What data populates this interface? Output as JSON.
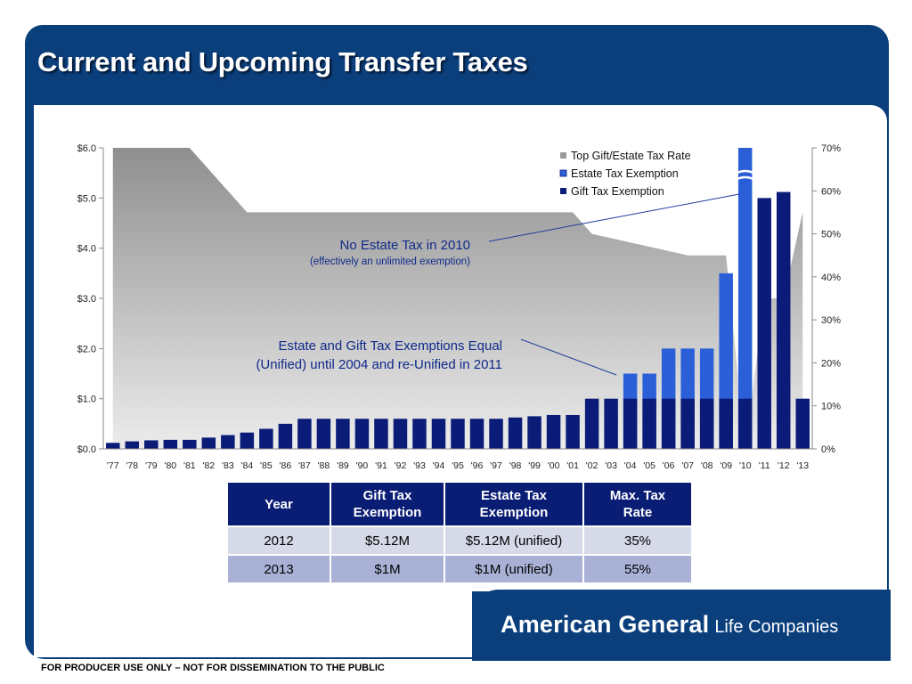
{
  "slide": {
    "title": "Current and Upcoming Transfer Taxes",
    "brand_bold": "American General",
    "brand_light": "Life Companies",
    "disclaimer": "FOR PRODUCER USE ONLY – NOT FOR DISSEMINATION TO THE PUBLIC"
  },
  "chart_data": {
    "type": "bar",
    "categories": [
      "'77",
      "'78",
      "'79",
      "'80",
      "'81",
      "'82",
      "'83",
      "'84",
      "'85",
      "'86",
      "'87",
      "'88",
      "'89",
      "'90",
      "'91",
      "'92",
      "'93",
      "'94",
      "'95",
      "'96",
      "'97",
      "'98",
      "'99",
      "'00",
      "'01",
      "'02",
      "'03",
      "'04",
      "'05",
      "'06",
      "'07",
      "'08",
      "'09",
      "'10",
      "'11",
      "'12",
      "'13"
    ],
    "series": [
      {
        "name": "Top Gift/Estate Tax Rate",
        "type": "area",
        "axis": "right",
        "color": "#9a9a9a",
        "values": [
          70,
          70,
          70,
          70,
          70,
          65,
          60,
          55,
          55,
          55,
          55,
          55,
          55,
          55,
          55,
          55,
          55,
          55,
          55,
          55,
          55,
          55,
          55,
          55,
          55,
          50,
          49,
          48,
          47,
          46,
          45,
          45,
          45,
          null,
          35,
          35,
          55
        ]
      },
      {
        "name": "Estate Tax Exemption",
        "type": "bar",
        "axis": "left",
        "color": "#2a5fd8",
        "values": [
          null,
          null,
          null,
          null,
          null,
          null,
          null,
          null,
          null,
          null,
          null,
          null,
          null,
          null,
          null,
          null,
          null,
          null,
          null,
          null,
          null,
          null,
          null,
          null,
          null,
          null,
          null,
          1.5,
          1.5,
          2.0,
          2.0,
          2.0,
          3.5,
          6.0,
          null,
          null,
          null
        ]
      },
      {
        "name": "Gift Tax Exemption",
        "type": "bar",
        "axis": "left",
        "color": "#0a1c78",
        "values": [
          0.12,
          0.15,
          0.17,
          0.18,
          0.18,
          0.225,
          0.275,
          0.325,
          0.4,
          0.5,
          0.6,
          0.6,
          0.6,
          0.6,
          0.6,
          0.6,
          0.6,
          0.6,
          0.6,
          0.6,
          0.6,
          0.625,
          0.65,
          0.675,
          0.675,
          1.0,
          1.0,
          1.0,
          1.0,
          1.0,
          1.0,
          1.0,
          1.0,
          1.0,
          5.0,
          5.12,
          1.0
        ]
      }
    ],
    "yleft": {
      "ticks": [
        "$0.0",
        "$1.0",
        "$2.0",
        "$3.0",
        "$4.0",
        "$5.0",
        "$6.0"
      ],
      "lim": [
        0,
        6
      ]
    },
    "yright": {
      "ticks": [
        "0%",
        "10%",
        "20%",
        "30%",
        "40%",
        "50%",
        "60%",
        "70%"
      ],
      "lim": [
        0,
        70
      ]
    },
    "legend_position": "top-right",
    "annotations": [
      {
        "text": "No Estate Tax in 2010",
        "sub": "(effectively an unlimited exemption)"
      },
      {
        "text": "Estate and Gift Tax Exemptions Equal",
        "sub": "(Unified) until 2004 and re-Unified in 2011"
      }
    ]
  },
  "table": {
    "headers": [
      [
        "Year"
      ],
      [
        "Gift Tax",
        "Exemption"
      ],
      [
        "Estate Tax",
        "Exemption"
      ],
      [
        "Max. Tax",
        "Rate"
      ]
    ],
    "rows": [
      [
        "2012",
        "$5.12M",
        "$5.12M (unified)",
        "35%"
      ],
      [
        "2013",
        "$1M",
        "$1M (unified)",
        "55%"
      ]
    ]
  }
}
